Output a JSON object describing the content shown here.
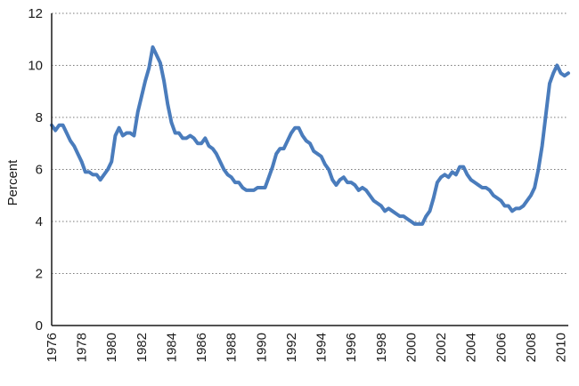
{
  "chart_data": {
    "type": "line",
    "title": "",
    "xlabel": "",
    "ylabel": "Percent",
    "xlim": [
      1976,
      2010.5
    ],
    "ylim": [
      0,
      12
    ],
    "y_ticks": [
      0,
      2,
      4,
      6,
      8,
      10,
      12
    ],
    "x_tick_labels": [
      "1976",
      "1978",
      "1980",
      "1982",
      "1984",
      "1986",
      "1988",
      "1990",
      "1992",
      "1994",
      "1996",
      "1998",
      "2000",
      "2002",
      "2004",
      "2006",
      "2008",
      "2010"
    ],
    "grid": "horizontal dotted",
    "colors": {
      "series": "#4a7cbc"
    },
    "series": [
      {
        "x": [
          1976.0,
          1976.25,
          1976.5,
          1976.75,
          1977.0,
          1977.25,
          1977.5,
          1977.75,
          1978.0,
          1978.25,
          1978.5,
          1978.75,
          1979.0,
          1979.25,
          1979.5,
          1979.75,
          1980.0,
          1980.25,
          1980.5,
          1980.75,
          1981.0,
          1981.25,
          1981.5,
          1981.75,
          1982.0,
          1982.25,
          1982.5,
          1982.75,
          1983.0,
          1983.25,
          1983.5,
          1983.75,
          1984.0,
          1984.25,
          1984.5,
          1984.75,
          1985.0,
          1985.25,
          1985.5,
          1985.75,
          1986.0,
          1986.25,
          1986.5,
          1986.75,
          1987.0,
          1987.25,
          1987.5,
          1987.75,
          1988.0,
          1988.25,
          1988.5,
          1988.75,
          1989.0,
          1989.25,
          1989.5,
          1989.75,
          1990.0,
          1990.25,
          1990.5,
          1990.75,
          1991.0,
          1991.25,
          1991.5,
          1991.75,
          1992.0,
          1992.25,
          1992.5,
          1992.75,
          1993.0,
          1993.25,
          1993.5,
          1993.75,
          1994.0,
          1994.25,
          1994.5,
          1994.75,
          1995.0,
          1995.25,
          1995.5,
          1995.75,
          1996.0,
          1996.25,
          1996.5,
          1996.75,
          1997.0,
          1997.25,
          1997.5,
          1997.75,
          1998.0,
          1998.25,
          1998.5,
          1998.75,
          1999.0,
          1999.25,
          1999.5,
          1999.75,
          2000.0,
          2000.25,
          2000.5,
          2000.75,
          2001.0,
          2001.25,
          2001.5,
          2001.75,
          2002.0,
          2002.25,
          2002.5,
          2002.75,
          2003.0,
          2003.25,
          2003.5,
          2003.75,
          2004.0,
          2004.25,
          2004.5,
          2004.75,
          2005.0,
          2005.25,
          2005.5,
          2005.75,
          2006.0,
          2006.25,
          2006.5,
          2006.75,
          2007.0,
          2007.25,
          2007.5,
          2007.75,
          2008.0,
          2008.25,
          2008.5,
          2008.75,
          2009.0,
          2009.25,
          2009.5,
          2009.75,
          2010.0,
          2010.25,
          2010.5
        ],
        "values": [
          7.7,
          7.5,
          7.7,
          7.7,
          7.4,
          7.1,
          6.9,
          6.6,
          6.3,
          5.9,
          5.9,
          5.8,
          5.8,
          5.6,
          5.8,
          6.0,
          6.3,
          7.3,
          7.6,
          7.3,
          7.4,
          7.4,
          7.3,
          8.2,
          8.8,
          9.4,
          9.9,
          10.7,
          10.4,
          10.1,
          9.4,
          8.5,
          7.8,
          7.4,
          7.4,
          7.2,
          7.2,
          7.3,
          7.2,
          7.0,
          7.0,
          7.2,
          6.9,
          6.8,
          6.6,
          6.3,
          6.0,
          5.8,
          5.7,
          5.5,
          5.5,
          5.3,
          5.2,
          5.2,
          5.2,
          5.3,
          5.3,
          5.3,
          5.7,
          6.1,
          6.6,
          6.8,
          6.8,
          7.1,
          7.4,
          7.6,
          7.6,
          7.3,
          7.1,
          7.0,
          6.7,
          6.6,
          6.5,
          6.2,
          6.0,
          5.6,
          5.4,
          5.6,
          5.7,
          5.5,
          5.5,
          5.4,
          5.2,
          5.3,
          5.2,
          5.0,
          4.8,
          4.7,
          4.6,
          4.4,
          4.5,
          4.4,
          4.3,
          4.2,
          4.2,
          4.1,
          4.0,
          3.9,
          3.9,
          3.9,
          4.2,
          4.4,
          4.9,
          5.5,
          5.7,
          5.8,
          5.7,
          5.9,
          5.8,
          6.1,
          6.1,
          5.8,
          5.6,
          5.5,
          5.4,
          5.3,
          5.3,
          5.2,
          5.0,
          4.9,
          4.8,
          4.6,
          4.6,
          4.4,
          4.5,
          4.5,
          4.6,
          4.8,
          5.0,
          5.3,
          6.0,
          6.9,
          8.1,
          9.3,
          9.7,
          10.0,
          9.7,
          9.6,
          9.7
        ]
      }
    ]
  }
}
